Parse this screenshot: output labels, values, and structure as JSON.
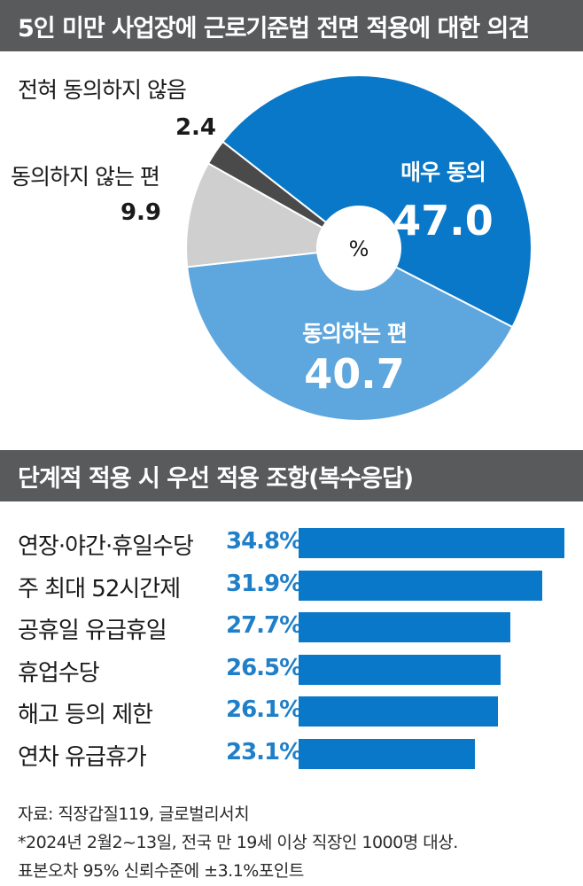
{
  "pie_title": "5인 미만 사업장에 근로기준법 전면 적용에 대한 의견",
  "bar_title": "단계적 적용 시 우선 적용 조항(복수응답)",
  "pie_center_label": "%",
  "colors": {
    "title_bg": "#595a5c",
    "strongly_agree": "#0a78c8",
    "agree": "#5ea6de",
    "disagree": "#cfcfcf",
    "strongly_disagree": "#4a4a4a",
    "bar": "#0a78c8",
    "pct_text": "#1f7fc9"
  },
  "chart_data": [
    {
      "type": "pie",
      "title": "5인 미만 사업장에 근로기준법 전면 적용에 대한 의견",
      "unit": "%",
      "slices": [
        {
          "label": "매우 동의",
          "value_text": "47.0",
          "value": 47.0
        },
        {
          "label": "동의하는 편",
          "value_text": "40.7",
          "value": 40.7
        },
        {
          "label": "동의하지 않는 편",
          "value_text": "9.9",
          "value": 9.9
        },
        {
          "label": "전혀 동의하지 않음",
          "value_text": "2.4",
          "value": 2.4
        }
      ]
    },
    {
      "type": "bar",
      "orientation": "horizontal",
      "title": "단계적 적용 시 우선 적용 조항(복수응답)",
      "categories": [
        "연장·야간·휴일수당",
        "주 최대 52시간제",
        "공휴일 유급휴일",
        "휴업수당",
        "해고 등의 제한",
        "연차 유급휴가"
      ],
      "value_labels": [
        "34.8%",
        "31.9%",
        "27.7%",
        "26.5%",
        "26.1%",
        "23.1%"
      ],
      "values": [
        34.8,
        31.9,
        27.7,
        26.5,
        26.1,
        23.1
      ]
    }
  ],
  "footnotes": [
    "자료: 직장갑질119, 글로벌리서치",
    "*2024년 2월2~13일, 전국 만 19세 이상 직장인 1000명 대상.",
    "표본오차 95% 신뢰수준에 ±3.1%포인트"
  ]
}
